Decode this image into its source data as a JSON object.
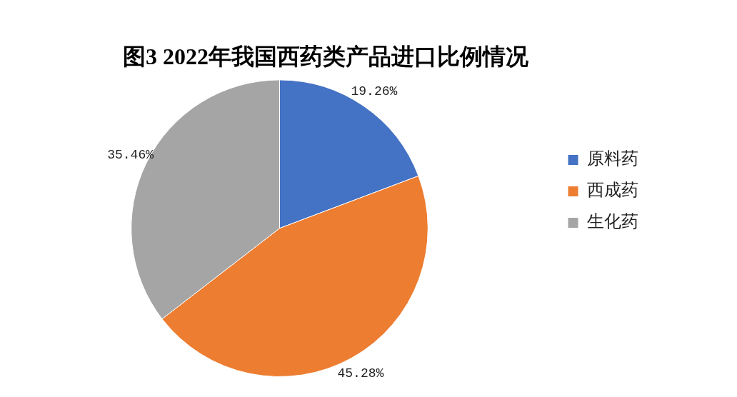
{
  "chart_data": {
    "type": "pie",
    "title": "图3 2022年我国西药类产品进口比例情况",
    "categories": [
      "原料药",
      "西成药",
      "生化药"
    ],
    "values": [
      19.26,
      45.28,
      35.46
    ],
    "colors": [
      "#4472c4",
      "#ed7d31",
      "#a5a5a5"
    ],
    "value_labels": [
      "19.26%",
      "45.28%",
      "35.46%"
    ],
    "legend": "right"
  }
}
